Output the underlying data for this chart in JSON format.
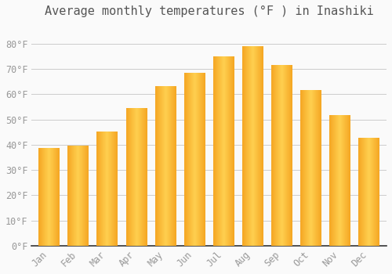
{
  "title": "Average monthly temperatures (°F ) in Inashiki",
  "months": [
    "Jan",
    "Feb",
    "Mar",
    "Apr",
    "May",
    "Jun",
    "Jul",
    "Aug",
    "Sep",
    "Oct",
    "Nov",
    "Dec"
  ],
  "values": [
    38.5,
    39.5,
    45.0,
    54.5,
    63.0,
    68.5,
    75.0,
    79.0,
    71.5,
    61.5,
    51.5,
    42.5
  ],
  "bar_color_left": "#F5A623",
  "bar_color_center": "#FFD050",
  "bar_color_right": "#F5A623",
  "background_color": "#FAFAFA",
  "grid_color": "#CCCCCC",
  "text_color": "#999999",
  "axis_color": "#333333",
  "ylim": [
    0,
    88
  ],
  "yticks": [
    0,
    10,
    20,
    30,
    40,
    50,
    60,
    70,
    80
  ],
  "ytick_labels": [
    "0°F",
    "10°F",
    "20°F",
    "30°F",
    "40°F",
    "50°F",
    "60°F",
    "70°F",
    "80°F"
  ],
  "title_fontsize": 11,
  "tick_fontsize": 8.5,
  "bar_width": 0.72
}
